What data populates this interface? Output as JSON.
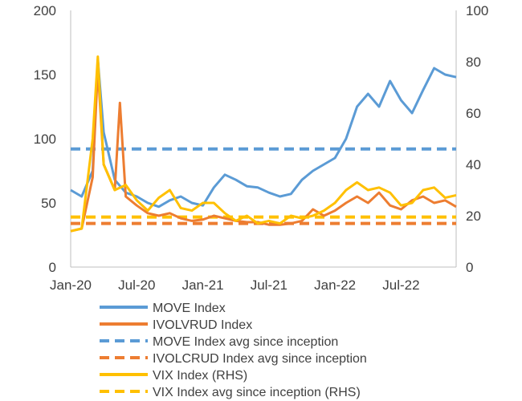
{
  "chart_data": {
    "type": "line",
    "x_axis": {
      "tick_labels": [
        "Jan-20",
        "Jul-20",
        "Jan-21",
        "Jul-21",
        "Jan-22",
        "Jul-22"
      ],
      "tick_values": [
        "2020-01",
        "2020-07",
        "2021-01",
        "2021-07",
        "2022-01",
        "2022-07"
      ],
      "range": [
        "2020-01",
        "2022-12"
      ]
    },
    "y_left": {
      "range": [
        0,
        200
      ],
      "ticks": [
        0,
        50,
        100,
        150,
        200
      ]
    },
    "y_right": {
      "range": [
        0,
        100
      ],
      "ticks": [
        0,
        20,
        40,
        60,
        80,
        100
      ]
    },
    "grid": false,
    "legend_position": "bottom",
    "series": [
      {
        "name": "MOVE Index",
        "axis": "left",
        "style": "solid",
        "color": "#5B9BD5",
        "x": [
          "2020-01",
          "2020-02",
          "2020-03",
          "2020-03-15",
          "2020-04",
          "2020-05",
          "2020-06",
          "2020-07",
          "2020-08",
          "2020-09",
          "2020-10",
          "2020-11",
          "2020-12",
          "2021-01",
          "2021-02",
          "2021-03",
          "2021-04",
          "2021-05",
          "2021-06",
          "2021-07",
          "2021-08",
          "2021-09",
          "2021-10",
          "2021-11",
          "2021-12",
          "2022-01",
          "2022-02",
          "2022-03",
          "2022-04",
          "2022-05",
          "2022-06",
          "2022-07",
          "2022-08",
          "2022-09",
          "2022-10",
          "2022-11",
          "2022-12"
        ],
        "y": [
          60,
          55,
          75,
          162,
          105,
          68,
          58,
          55,
          50,
          47,
          52,
          55,
          50,
          48,
          62,
          72,
          68,
          63,
          62,
          58,
          55,
          57,
          68,
          75,
          80,
          85,
          100,
          125,
          135,
          125,
          145,
          130,
          120,
          138,
          155,
          150,
          148
        ]
      },
      {
        "name": "IVOLVRUD Index",
        "axis": "left",
        "style": "solid",
        "color": "#ED7D31",
        "x": [
          "2020-01",
          "2020-02",
          "2020-03",
          "2020-03-15",
          "2020-04",
          "2020-05",
          "2020-05-15",
          "2020-06",
          "2020-07",
          "2020-08",
          "2020-09",
          "2020-10",
          "2020-11",
          "2020-12",
          "2021-01",
          "2021-02",
          "2021-03",
          "2021-04",
          "2021-05",
          "2021-06",
          "2021-07",
          "2021-08",
          "2021-09",
          "2021-10",
          "2021-11",
          "2021-12",
          "2022-01",
          "2022-02",
          "2022-03",
          "2022-04",
          "2022-05",
          "2022-06",
          "2022-07",
          "2022-08",
          "2022-09",
          "2022-10",
          "2022-11",
          "2022-12"
        ],
        "y": [
          28,
          30,
          70,
          155,
          80,
          60,
          128,
          55,
          48,
          42,
          40,
          42,
          38,
          36,
          37,
          40,
          38,
          36,
          35,
          35,
          33,
          33,
          34,
          36,
          45,
          40,
          44,
          50,
          55,
          50,
          58,
          48,
          45,
          52,
          55,
          50,
          52,
          47
        ]
      },
      {
        "name": "MOVE Index avg since inception",
        "axis": "left",
        "style": "dashed",
        "color": "#5B9BD5",
        "x": [
          "2020-01",
          "2022-12"
        ],
        "y": [
          92,
          92
        ]
      },
      {
        "name": "IVOLCRUD Index avg since inception",
        "axis": "left",
        "style": "dashed",
        "color": "#ED7D31",
        "x": [
          "2020-01",
          "2022-12"
        ],
        "y": [
          34,
          34
        ]
      },
      {
        "name": "VIX Index (RHS)",
        "axis": "right",
        "style": "solid",
        "color": "#FFC000",
        "x": [
          "2020-01",
          "2020-02",
          "2020-03",
          "2020-03-15",
          "2020-04",
          "2020-05",
          "2020-06",
          "2020-07",
          "2020-08",
          "2020-09",
          "2020-10",
          "2020-11",
          "2020-12",
          "2021-01",
          "2021-02",
          "2021-03",
          "2021-04",
          "2021-05",
          "2021-06",
          "2021-07",
          "2021-08",
          "2021-09",
          "2021-10",
          "2021-11",
          "2021-12",
          "2022-01",
          "2022-02",
          "2022-03",
          "2022-04",
          "2022-05",
          "2022-06",
          "2022-07",
          "2022-08",
          "2022-09",
          "2022-10",
          "2022-11",
          "2022-12"
        ],
        "y": [
          14,
          15,
          50,
          82,
          40,
          30,
          32,
          26,
          22,
          27,
          30,
          23,
          22,
          25,
          25,
          21,
          18,
          20,
          17,
          18,
          17,
          20,
          19,
          20,
          22,
          25,
          30,
          33,
          30,
          31,
          29,
          24,
          25,
          30,
          31,
          27,
          28
        ]
      },
      {
        "name": "VIX Index avg since inception (RHS)",
        "axis": "right",
        "style": "dashed",
        "color": "#FFC000",
        "x": [
          "2020-01",
          "2022-12"
        ],
        "y": [
          19.5,
          19.5
        ]
      }
    ]
  }
}
